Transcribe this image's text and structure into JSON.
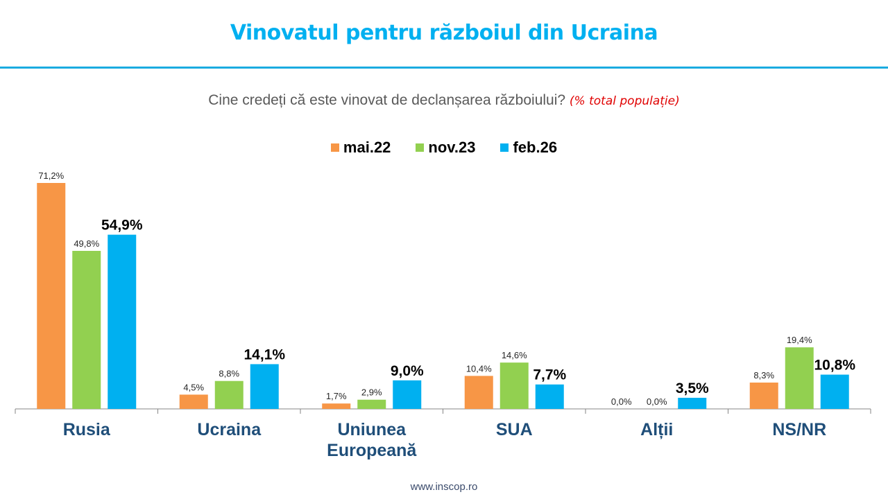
{
  "header": {
    "title": "Vinovatul pentru războiul din Ucraina",
    "question": "Cine credeți că este vinovat de declanșarea războiului?",
    "note": "(% total populație)"
  },
  "footer": {
    "website": "www.inscop.ro"
  },
  "chart_data": {
    "type": "bar",
    "title": "Vinovatul pentru războiul din Ucraina",
    "subtitle": "Cine credeți că este vinovat de declanșarea războiului? (% total populație)",
    "xlabel": "",
    "ylabel": "",
    "ylim": [
      0,
      75
    ],
    "grid": false,
    "legend_position": "top-center",
    "categories": [
      "Rusia",
      "Ucraina",
      "Uniunea Europeană",
      "SUA",
      "Alții",
      "NS/NR"
    ],
    "category_lines": [
      [
        "Rusia"
      ],
      [
        "Ucraina"
      ],
      [
        "Uniunea",
        "Europeană"
      ],
      [
        "SUA"
      ],
      [
        "Alții"
      ],
      [
        "NS/NR"
      ]
    ],
    "series": [
      {
        "name": "mai.22",
        "color": "#f79646",
        "values": [
          71.2,
          4.5,
          1.7,
          10.4,
          0.0,
          8.3
        ],
        "labels": [
          "71,2%",
          "4,5%",
          "1,7%",
          "10,4%",
          "0,0%",
          "8,3%"
        ],
        "label_emphasis": false
      },
      {
        "name": "nov.23",
        "color": "#92d050",
        "values": [
          49.8,
          8.8,
          2.9,
          14.6,
          0.0,
          19.4
        ],
        "labels": [
          "49,8%",
          "8,8%",
          "2,9%",
          "14,6%",
          "0,0%",
          "19,4%"
        ],
        "label_emphasis": false
      },
      {
        "name": "feb.26",
        "color": "#00b0f0",
        "values": [
          54.9,
          14.1,
          9.0,
          7.7,
          3.5,
          10.8
        ],
        "labels": [
          "54,9%",
          "14,1%",
          "9,0%",
          "7,7%",
          "3,5%",
          "10,8%"
        ],
        "label_emphasis": true
      }
    ]
  }
}
